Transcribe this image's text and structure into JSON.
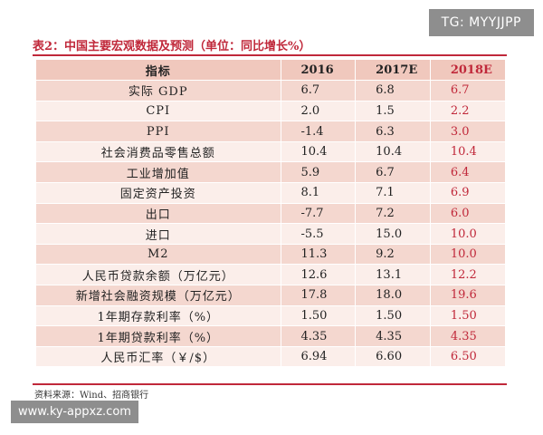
{
  "watermark_top": "TG: MYYJJPP",
  "watermark_bottom": "www.ky-appxz.com",
  "caption": "表2：中国主要宏观数据及预测（单位：同比增长%）",
  "table": {
    "headers": [
      "指标",
      "2016",
      "2017E",
      "2018E"
    ],
    "rows": [
      [
        "实际 GDP",
        "6.7",
        "6.8",
        "6.7"
      ],
      [
        "CPI",
        "2.0",
        "1.5",
        "2.2"
      ],
      [
        "PPI",
        "-1.4",
        "6.3",
        "3.0"
      ],
      [
        "社会消费品零售总额",
        "10.4",
        "10.4",
        "10.4"
      ],
      [
        "工业增加值",
        "5.9",
        "6.7",
        "6.4"
      ],
      [
        "固定资产投资",
        "8.1",
        "7.1",
        "6.9"
      ],
      [
        "出口",
        "-7.7",
        "7.2",
        "6.0"
      ],
      [
        "进口",
        "-5.5",
        "15.0",
        "10.0"
      ],
      [
        "M2",
        "11.3",
        "9.2",
        "10.0"
      ],
      [
        "人民币贷款余额（万亿元）",
        "12.6",
        "13.1",
        "12.2"
      ],
      [
        "新增社会融资规模（万亿元）",
        "17.8",
        "18.0",
        "19.6"
      ],
      [
        "1年期存款利率（%）",
        "1.50",
        "1.50",
        "1.50"
      ],
      [
        "1年期贷款利率（%）",
        "4.35",
        "4.35",
        "4.35"
      ],
      [
        "人民币汇率（￥/$）",
        "6.94",
        "6.60",
        "6.50"
      ]
    ]
  },
  "source": "资料来源：Wind、招商银行",
  "colors": {
    "accent": "#c0283a",
    "row_dark": "#f4d7cf",
    "row_light": "#fbeeea",
    "header_bg": "#f0c8bd"
  }
}
